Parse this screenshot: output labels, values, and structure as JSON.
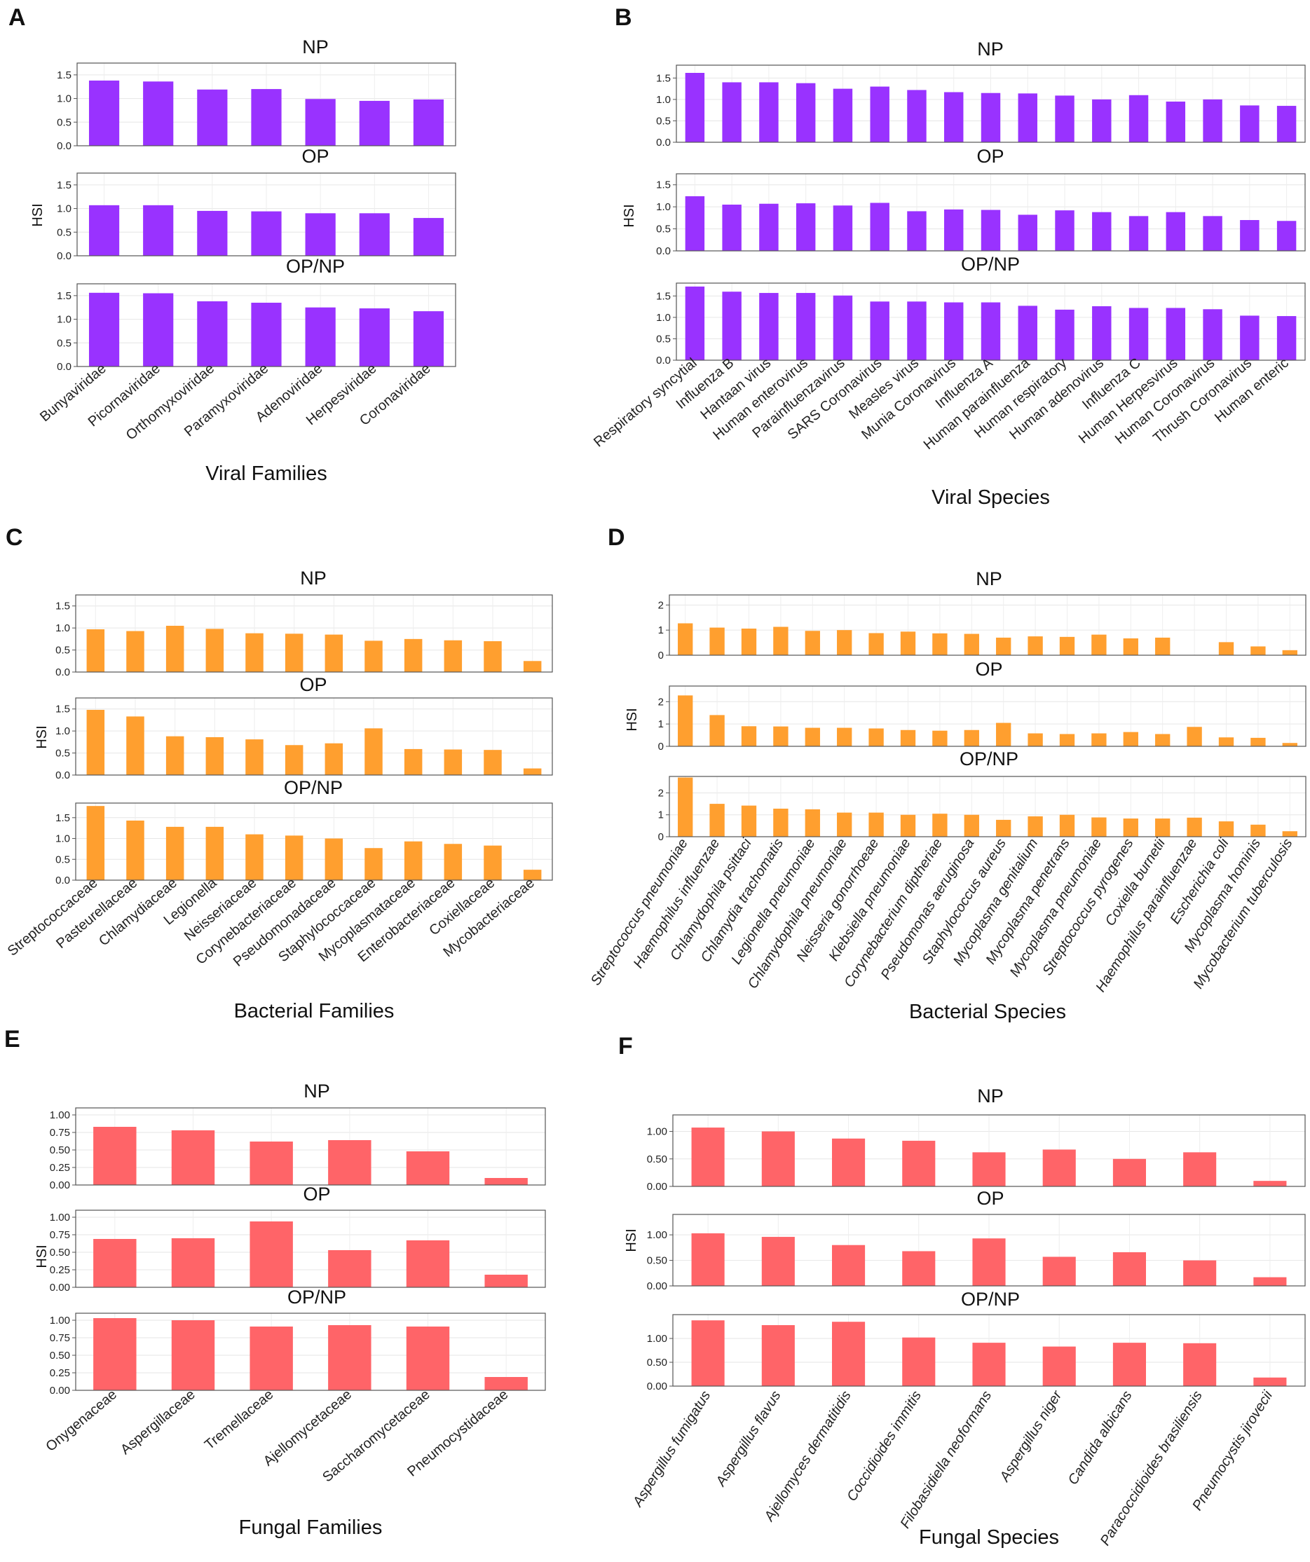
{
  "figure": {
    "y_axis_label": "HSI",
    "subplot_titles": [
      "NP",
      "OP",
      "OP/NP"
    ]
  },
  "chart_data": [
    {
      "panel": "A",
      "type": "bar",
      "color": "#9932ff",
      "xlabel": "Viral Families",
      "ylabel": "HSI",
      "italic": false,
      "categories": [
        "Bunyaviridae",
        "Picornaviridae",
        "Orthomyxoviridae",
        "Paramyxoviridae",
        "Adenoviridae",
        "Herpesviridae",
        "Coronaviridae"
      ],
      "series": [
        {
          "name": "NP",
          "yticks": [
            "0.0",
            "0.5",
            "1.0",
            "1.5"
          ],
          "ylim": [
            0,
            1.75
          ],
          "values": [
            1.38,
            1.36,
            1.19,
            1.2,
            0.99,
            0.95,
            0.98
          ]
        },
        {
          "name": "OP",
          "yticks": [
            "0.0",
            "0.5",
            "1.0",
            "1.5"
          ],
          "ylim": [
            0,
            1.75
          ],
          "values": [
            1.07,
            1.07,
            0.95,
            0.94,
            0.9,
            0.9,
            0.8
          ]
        },
        {
          "name": "OP/NP",
          "yticks": [
            "0.0",
            "0.5",
            "1.0",
            "1.5"
          ],
          "ylim": [
            0,
            1.75
          ],
          "values": [
            1.56,
            1.55,
            1.38,
            1.35,
            1.25,
            1.23,
            1.17
          ]
        }
      ]
    },
    {
      "panel": "B",
      "type": "bar",
      "color": "#9932ff",
      "xlabel": "Viral Species",
      "ylabel": "HSI",
      "italic": false,
      "categories": [
        "Respiratory syncytial",
        "Influenza B",
        "Hantaan virus",
        "Human enterovirus",
        "Parainfluenzavirus",
        "SARS Coronavirus",
        "Measles virus",
        "Munia Coronavirus",
        "Influenza A",
        "Human parainfluenza",
        "Human respiratory",
        "Human adenovirus",
        "Influenza C",
        "Human Herpesvirus",
        "Human Coronavirus",
        "Thrush Coronavirus",
        "Human enteric"
      ],
      "series": [
        {
          "name": "NP",
          "yticks": [
            "0.0",
            "0.5",
            "1.0",
            "1.5"
          ],
          "ylim": [
            0,
            1.8
          ],
          "values": [
            1.62,
            1.4,
            1.4,
            1.38,
            1.25,
            1.3,
            1.22,
            1.17,
            1.15,
            1.14,
            1.09,
            1.0,
            1.1,
            0.95,
            1.0,
            0.86,
            0.85
          ]
        },
        {
          "name": "OP",
          "yticks": [
            "0.0",
            "0.5",
            "1.0",
            "1.5"
          ],
          "ylim": [
            0,
            1.75
          ],
          "values": [
            1.24,
            1.05,
            1.07,
            1.08,
            1.03,
            1.09,
            0.9,
            0.94,
            0.93,
            0.82,
            0.92,
            0.88,
            0.79,
            0.88,
            0.79,
            0.7,
            0.68
          ]
        },
        {
          "name": "OP/NP",
          "yticks": [
            "0.0",
            "0.5",
            "1.0",
            "1.5"
          ],
          "ylim": [
            0,
            1.8
          ],
          "values": [
            1.72,
            1.6,
            1.57,
            1.57,
            1.51,
            1.37,
            1.37,
            1.35,
            1.35,
            1.27,
            1.18,
            1.26,
            1.22,
            1.22,
            1.19,
            1.04,
            1.03
          ]
        }
      ]
    },
    {
      "panel": "C",
      "type": "bar",
      "color": "#ff9f2f",
      "xlabel": "Bacterial Families",
      "ylabel": "HSI",
      "italic": false,
      "categories": [
        "Streptococcaceae",
        "Pasteurellaceae",
        "Chlamydiaceae",
        "Legionella",
        "Neisseriaceae",
        "Corynebacteriaceae",
        "Pseudomonadaceae",
        "Staphylococcaceae",
        "Mycoplasmataceae",
        "Enterobacteriaceae",
        "Coxiellaceae",
        "Mycobacteriaceae"
      ],
      "series": [
        {
          "name": "NP",
          "yticks": [
            "0.0",
            "0.5",
            "1.0",
            "1.5"
          ],
          "ylim": [
            0,
            1.75
          ],
          "values": [
            0.97,
            0.93,
            1.05,
            0.98,
            0.88,
            0.87,
            0.85,
            0.71,
            0.75,
            0.72,
            0.7,
            0.25
          ]
        },
        {
          "name": "OP",
          "yticks": [
            "0.0",
            "0.5",
            "1.0",
            "1.5"
          ],
          "ylim": [
            0,
            1.75
          ],
          "values": [
            1.48,
            1.33,
            0.88,
            0.86,
            0.81,
            0.68,
            0.72,
            1.06,
            0.59,
            0.58,
            0.57,
            0.15
          ]
        },
        {
          "name": "OP/NP",
          "yticks": [
            "0.0",
            "0.5",
            "1.0",
            "1.5"
          ],
          "ylim": [
            0,
            1.85
          ],
          "values": [
            1.78,
            1.43,
            1.28,
            1.28,
            1.1,
            1.07,
            1.0,
            0.77,
            0.93,
            0.87,
            0.83,
            0.25
          ]
        }
      ]
    },
    {
      "panel": "D",
      "type": "bar",
      "color": "#ff9f2f",
      "xlabel": "Bacterial Species",
      "ylabel": "HSI",
      "italic": true,
      "categories": [
        "Streptococcus pneumoniae",
        "Haemophilus influenzae",
        "Chlamydophila psittaci",
        "Chlamydia trachomatis",
        "Legionella pneumoniae",
        "Chlamydophila pneumoniae",
        "Neisseria gonorrhoeae",
        "Klebsiella pneumoniae",
        "Corynebacterium diptheriae",
        "Pseudomonas aeruginosa",
        "Staphylococcus aureus",
        "Mycoplasma genitalium",
        "Mycoplasma penetrans",
        "Mycoplasma pneumoniae",
        "Streptococcus pyrogenes",
        "Coxiella burnetii",
        "Haemophilus parainfluenzae",
        "Escherichia coli",
        "Mycoplasma hominis",
        "Mycobacterium tuberculosis"
      ],
      "series": [
        {
          "name": "NP",
          "yticks": [
            "0",
            "1",
            "2"
          ],
          "ylim": [
            0,
            2.4
          ],
          "values": [
            1.27,
            1.1,
            1.06,
            1.13,
            0.97,
            1.0,
            0.88,
            0.94,
            0.87,
            0.85,
            0.7,
            0.75,
            0.73,
            0.82,
            0.67,
            0.7,
            0,
            0.52,
            0.35,
            0.2
          ]
        },
        {
          "name": "OP",
          "yticks": [
            "0",
            "1",
            "2"
          ],
          "ylim": [
            0,
            2.7
          ],
          "values": [
            2.28,
            1.4,
            0.9,
            0.89,
            0.83,
            0.83,
            0.8,
            0.73,
            0.7,
            0.73,
            1.05,
            0.58,
            0.55,
            0.58,
            0.64,
            0.55,
            0.87,
            0.4,
            0.38,
            0.15
          ]
        },
        {
          "name": "OP/NP",
          "yticks": [
            "0",
            "1",
            "2"
          ],
          "ylim": [
            0,
            2.75
          ],
          "values": [
            2.7,
            1.5,
            1.42,
            1.28,
            1.25,
            1.1,
            1.1,
            1.0,
            1.05,
            1.0,
            0.77,
            0.93,
            1.0,
            0.88,
            0.83,
            0.83,
            0.87,
            0.7,
            0.55,
            0.25
          ]
        }
      ]
    },
    {
      "panel": "E",
      "type": "bar",
      "color": "#ff6468",
      "xlabel": "Fungal Families",
      "ylabel": "HSI",
      "italic": false,
      "categories": [
        "Onygenaceae",
        "Aspergillaceae",
        "Tremellaceae",
        "Ajellomycetaceae",
        "Saccharomycetaceae",
        "Pneumocystidaceae"
      ],
      "series": [
        {
          "name": "NP",
          "yticks": [
            "0.00",
            "0.25",
            "0.50",
            "0.75",
            "1.00"
          ],
          "ylim": [
            0,
            1.1
          ],
          "values": [
            0.83,
            0.78,
            0.62,
            0.64,
            0.48,
            0.1
          ]
        },
        {
          "name": "OP",
          "yticks": [
            "0.00",
            "0.25",
            "0.50",
            "0.75",
            "1.00"
          ],
          "ylim": [
            0,
            1.1
          ],
          "values": [
            0.69,
            0.7,
            0.94,
            0.53,
            0.67,
            0.18
          ]
        },
        {
          "name": "OP/NP",
          "yticks": [
            "0.00",
            "0.25",
            "0.50",
            "0.75",
            "1.00"
          ],
          "ylim": [
            0,
            1.1
          ],
          "values": [
            1.03,
            1.0,
            0.91,
            0.93,
            0.91,
            0.19
          ]
        }
      ]
    },
    {
      "panel": "F",
      "type": "bar",
      "color": "#ff6468",
      "xlabel": "Fungal Species",
      "ylabel": "HSI",
      "italic": true,
      "categories": [
        "Aspergillus fumigatus",
        "Aspergillus flavus",
        "Ajellomyces dermatitidis",
        "Coccidioides immitis",
        "Filobasidiella neoformans",
        "Aspergillus niger",
        "Candida albicans",
        "Paracoccidioides brasiliensis",
        "Pneumocystis jirovecii"
      ],
      "series": [
        {
          "name": "NP",
          "yticks": [
            "0.00",
            "0.50",
            "1.00"
          ],
          "ylim": [
            0,
            1.3
          ],
          "values": [
            1.07,
            1.0,
            0.87,
            0.83,
            0.62,
            0.67,
            0.5,
            0.62,
            0.1
          ]
        },
        {
          "name": "OP",
          "yticks": [
            "0.00",
            "0.50",
            "1.00"
          ],
          "ylim": [
            0,
            1.4
          ],
          "values": [
            1.03,
            0.96,
            0.8,
            0.68,
            0.93,
            0.57,
            0.66,
            0.5,
            0.17
          ]
        },
        {
          "name": "OP/NP",
          "yticks": [
            "0.00",
            "0.50",
            "1.00"
          ],
          "ylim": [
            0,
            1.5
          ],
          "values": [
            1.38,
            1.28,
            1.35,
            1.02,
            0.91,
            0.83,
            0.91,
            0.9,
            0.18
          ]
        }
      ]
    }
  ]
}
